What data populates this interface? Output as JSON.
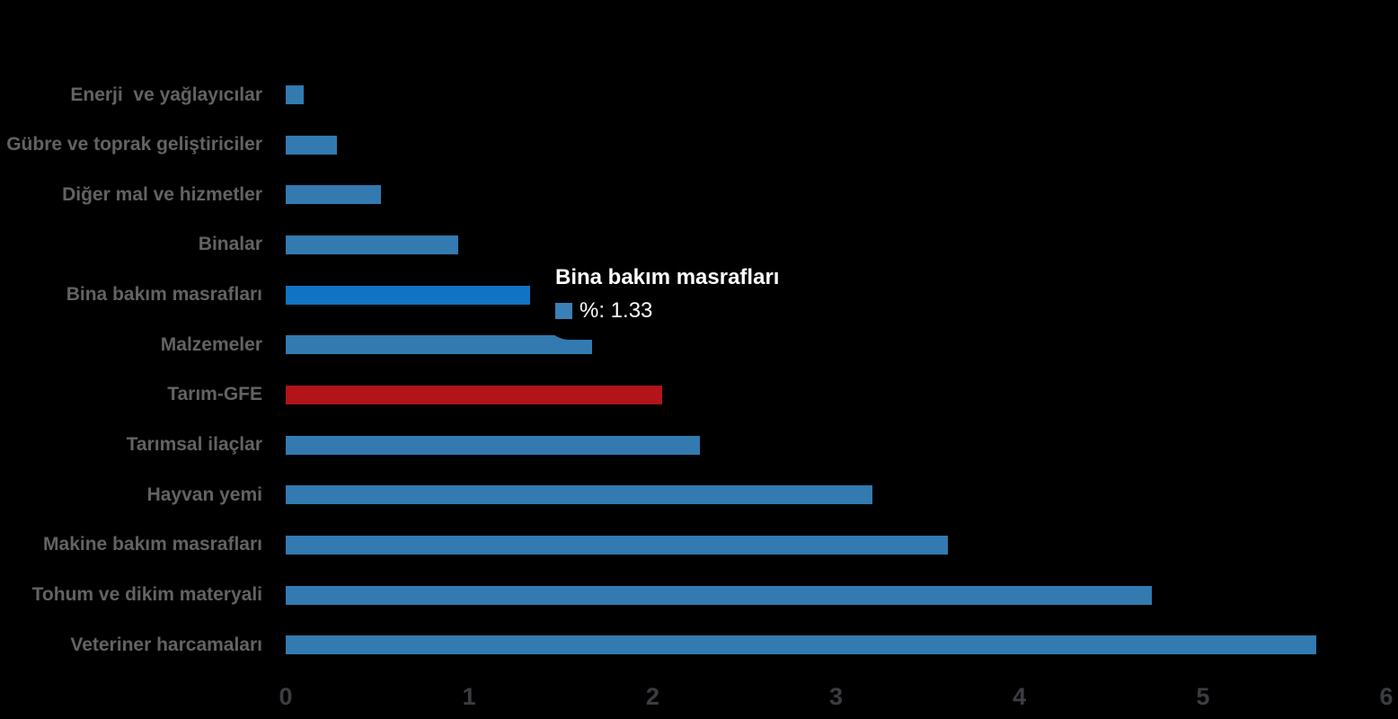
{
  "chart_data": {
    "type": "bar",
    "orientation": "horizontal",
    "title": "",
    "xlabel": "",
    "ylabel": "",
    "categories": [
      "Enerji  ve yağlayıcılar",
      "Gübre ve toprak geliştiriciler",
      "Diğer mal ve hizmetler",
      "Binalar",
      "Bina bakım masrafları",
      "Malzemeler",
      "Tarım-GFE",
      "Tarımsal ilaçlar",
      "Hayvan yemi",
      "Makine bakım masrafları",
      "Tohum ve dikim materyali",
      "Veteriner harcamaları"
    ],
    "values": [
      0.1,
      0.28,
      0.52,
      0.94,
      1.33,
      1.67,
      2.05,
      2.26,
      3.2,
      3.61,
      4.72,
      5.62
    ],
    "series_name": "%",
    "highlighted_index": 4,
    "bar_colors": [
      "#327ab0",
      "#327ab0",
      "#327ab0",
      "#327ab0",
      "#1173c4",
      "#327ab0",
      "#b11419",
      "#327ab0",
      "#327ab0",
      "#327ab0",
      "#327ab0",
      "#327ab0"
    ],
    "x_ticks": [
      "0",
      "1",
      "2",
      "3",
      "4",
      "5",
      "6"
    ],
    "xlim": [
      0,
      6
    ],
    "grid": false,
    "legend": false,
    "colors": {
      "bar_default": "#327ab0",
      "bar_highlight": "#1173c4",
      "bar_accent_red": "#b11419",
      "category_label": "#636363",
      "tick_label": "#3b3d40",
      "background": "#000000"
    }
  },
  "tooltip": {
    "title": "Bina bakım masrafları",
    "value_line": "%: 1.33",
    "marker_color": "#3a80b6",
    "background": "#000000",
    "text_color": "#ffffff"
  }
}
